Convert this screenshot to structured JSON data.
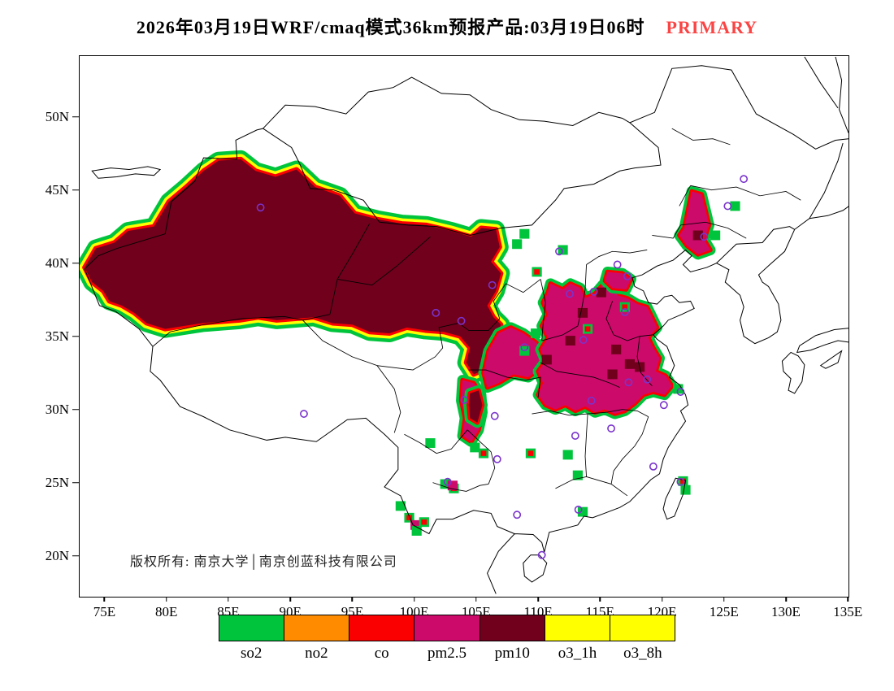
{
  "title": {
    "main": "2026年03月19日WRF/cmaq模式36km预报产品:03月19日06时",
    "tag": "PRIMARY",
    "tag_color": "#fb4444"
  },
  "map": {
    "copyright": "版权所有: 南京大学│南京创蓝科技有限公司",
    "bounds": {
      "lon_min": 73.0,
      "lon_max": 135.05,
      "lat_min": 17.2,
      "lat_max": 54.15
    },
    "lon_ticks": [
      {
        "value": 75,
        "label": "75E"
      },
      {
        "value": 80,
        "label": "80E"
      },
      {
        "value": 85,
        "label": "85E"
      },
      {
        "value": 90,
        "label": "90E"
      },
      {
        "value": 95,
        "label": "95E"
      },
      {
        "value": 100,
        "label": "100E"
      },
      {
        "value": 105,
        "label": "105E"
      },
      {
        "value": 110,
        "label": "110E"
      },
      {
        "value": 115,
        "label": "115E"
      },
      {
        "value": 120,
        "label": "120E"
      },
      {
        "value": 125,
        "label": "125E"
      },
      {
        "value": 130,
        "label": "130E"
      },
      {
        "value": 135,
        "label": "135E"
      }
    ],
    "lat_ticks": [
      {
        "value": 50,
        "label": "50N"
      },
      {
        "value": 45,
        "label": "45N"
      },
      {
        "value": 40,
        "label": "40N"
      },
      {
        "value": 35,
        "label": "35N"
      },
      {
        "value": 30,
        "label": "30N"
      },
      {
        "value": 25,
        "label": "25N"
      },
      {
        "value": 20,
        "label": "20N"
      }
    ]
  },
  "legend": {
    "segments": [
      {
        "key": "so2",
        "label": "so2",
        "color": "#00c53c"
      },
      {
        "key": "no2",
        "label": "no2",
        "color": "#ff8c00"
      },
      {
        "key": "co",
        "label": "co",
        "color": "#fb0000"
      },
      {
        "key": "pm25",
        "label": "pm2.5",
        "color": "#cc0a6a"
      },
      {
        "key": "pm10",
        "label": "pm10",
        "color": "#70001c"
      },
      {
        "key": "o3_1h",
        "label": "o3_1h",
        "color": "#ffff00"
      },
      {
        "key": "o3_8h",
        "label": "o3_8h",
        "color": "#ffff00"
      }
    ]
  },
  "colors": {
    "marker": "#7a33cc",
    "fringe_green": "#00c53c",
    "fringe_yellow": "#ffff00",
    "fringe_red": "#fb0000"
  },
  "chart_data": {
    "type": "pollution-map",
    "regions": [
      {
        "pollutant": "pm10",
        "fringe": "wide",
        "points": [
          [
            73.4,
            39.7
          ],
          [
            74.3,
            41.0
          ],
          [
            75.8,
            41.4
          ],
          [
            76.9,
            42.2
          ],
          [
            79.0,
            42.5
          ],
          [
            80.2,
            44.2
          ],
          [
            81.6,
            45.2
          ],
          [
            83.0,
            46.3
          ],
          [
            84.2,
            47.0
          ],
          [
            86.0,
            47.1
          ],
          [
            87.2,
            46.3
          ],
          [
            88.8,
            45.9
          ],
          [
            90.5,
            46.4
          ],
          [
            92.0,
            45.2
          ],
          [
            94.0,
            44.6
          ],
          [
            95.2,
            43.4
          ],
          [
            97.0,
            43.0
          ],
          [
            99.0,
            42.7
          ],
          [
            101.0,
            42.6
          ],
          [
            103.0,
            42.2
          ],
          [
            104.6,
            41.8
          ],
          [
            105.4,
            42.4
          ],
          [
            106.6,
            42.3
          ],
          [
            106.9,
            41.1
          ],
          [
            106.2,
            40.1
          ],
          [
            107.0,
            39.3
          ],
          [
            106.6,
            38.1
          ],
          [
            105.9,
            37.1
          ],
          [
            106.4,
            36.3
          ],
          [
            107.0,
            35.8
          ],
          [
            106.5,
            34.7
          ],
          [
            106.1,
            33.7
          ],
          [
            105.6,
            32.7
          ],
          [
            104.8,
            32.4
          ],
          [
            104.2,
            33.2
          ],
          [
            104.5,
            34.2
          ],
          [
            103.7,
            35.0
          ],
          [
            102.4,
            35.3
          ],
          [
            100.9,
            35.4
          ],
          [
            99.4,
            35.6
          ],
          [
            98.0,
            35.2
          ],
          [
            96.4,
            35.3
          ],
          [
            95.0,
            35.8
          ],
          [
            93.4,
            35.9
          ],
          [
            91.9,
            36.3
          ],
          [
            90.4,
            36.2
          ],
          [
            88.9,
            36.1
          ],
          [
            87.4,
            36.3
          ],
          [
            85.9,
            36.1
          ],
          [
            84.4,
            36.0
          ],
          [
            82.9,
            35.9
          ],
          [
            81.4,
            35.7
          ],
          [
            79.9,
            35.5
          ],
          [
            78.4,
            35.9
          ],
          [
            77.4,
            36.6
          ],
          [
            76.4,
            37.1
          ],
          [
            75.4,
            37.4
          ],
          [
            74.9,
            38.1
          ],
          [
            74.0,
            38.7
          ]
        ]
      },
      {
        "pollutant": "pm25",
        "points": [
          [
            105.6,
            32.5
          ],
          [
            106.0,
            34.0
          ],
          [
            106.8,
            35.2
          ],
          [
            107.8,
            35.6
          ],
          [
            108.8,
            35.2
          ],
          [
            109.8,
            34.6
          ],
          [
            110.5,
            34.0
          ],
          [
            110.2,
            32.8
          ],
          [
            109.2,
            32.2
          ],
          [
            108.0,
            32.4
          ],
          [
            106.8,
            31.8
          ],
          [
            105.9,
            31.5
          ]
        ]
      },
      {
        "pollutant": "pm25",
        "points": [
          [
            103.9,
            32.0
          ],
          [
            104.8,
            31.8
          ],
          [
            105.4,
            31.0
          ],
          [
            105.5,
            29.8
          ],
          [
            105.2,
            28.6
          ],
          [
            104.6,
            27.8
          ],
          [
            103.9,
            28.2
          ],
          [
            104.1,
            29.4
          ],
          [
            103.8,
            30.6
          ]
        ]
      },
      {
        "pollutant": "pm10",
        "points": [
          [
            104.5,
            31.1
          ],
          [
            105.2,
            31.3
          ],
          [
            105.5,
            30.3
          ],
          [
            105.1,
            29.1
          ],
          [
            104.5,
            29.4
          ],
          [
            104.4,
            30.3
          ]
        ]
      },
      {
        "pollutant": "pm25",
        "points": [
          [
            110.8,
            38.0
          ],
          [
            111.0,
            38.6
          ],
          [
            112.0,
            38.2
          ],
          [
            112.6,
            38.6
          ],
          [
            113.4,
            38.3
          ],
          [
            113.8,
            37.6
          ],
          [
            114.6,
            37.9
          ],
          [
            115.2,
            38.5
          ],
          [
            116.0,
            38.4
          ],
          [
            116.4,
            37.8
          ],
          [
            117.2,
            37.6
          ],
          [
            118.0,
            37.2
          ],
          [
            118.8,
            37.0
          ],
          [
            119.2,
            36.3
          ],
          [
            119.6,
            35.6
          ],
          [
            118.9,
            34.9
          ],
          [
            119.3,
            34.2
          ],
          [
            119.8,
            33.5
          ],
          [
            119.5,
            32.6
          ],
          [
            120.3,
            32.3
          ],
          [
            120.8,
            31.6
          ],
          [
            120.2,
            31.0
          ],
          [
            119.3,
            31.2
          ],
          [
            118.5,
            31.0
          ],
          [
            117.8,
            30.4
          ],
          [
            117.0,
            29.9
          ],
          [
            116.2,
            29.7
          ],
          [
            115.4,
            30.0
          ],
          [
            114.6,
            29.8
          ],
          [
            113.8,
            30.2
          ],
          [
            113.0,
            29.9
          ],
          [
            112.2,
            30.3
          ],
          [
            111.4,
            30.0
          ],
          [
            110.6,
            30.3
          ],
          [
            110.0,
            31.0
          ],
          [
            110.4,
            31.8
          ],
          [
            110.0,
            32.6
          ],
          [
            110.6,
            33.3
          ],
          [
            110.2,
            34.1
          ],
          [
            110.8,
            34.9
          ],
          [
            110.3,
            35.7
          ],
          [
            110.8,
            36.5
          ],
          [
            110.4,
            37.3
          ]
        ]
      },
      {
        "pollutant": "pm25",
        "points": [
          [
            115.6,
            39.4
          ],
          [
            116.8,
            39.3
          ],
          [
            117.5,
            38.9
          ],
          [
            117.1,
            38.2
          ],
          [
            116.0,
            38.3
          ],
          [
            115.4,
            38.8
          ]
        ]
      },
      {
        "pollutant": "pm25",
        "points": [
          [
            121.8,
            42.4
          ],
          [
            122.4,
            44.9
          ],
          [
            123.2,
            44.7
          ],
          [
            123.8,
            42.6
          ],
          [
            123.4,
            41.6
          ],
          [
            123.9,
            40.9
          ],
          [
            122.9,
            40.6
          ],
          [
            122.0,
            41.2
          ],
          [
            121.4,
            41.9
          ]
        ]
      }
    ],
    "cells": [
      [
        "so2",
        108.9,
        42.0
      ],
      [
        "so2",
        112.0,
        40.9
      ],
      [
        "so2",
        108.3,
        41.3
      ],
      [
        "co",
        109.9,
        39.4
      ],
      [
        "so2",
        109.8,
        35.2
      ],
      [
        "so2",
        108.9,
        34.0
      ],
      [
        "so2",
        112.4,
        26.9
      ],
      [
        "co",
        109.4,
        27.0
      ],
      [
        "so2",
        113.2,
        25.5
      ],
      [
        "so2",
        113.6,
        23.0
      ],
      [
        "so2",
        121.3,
        31.4
      ],
      [
        "co",
        121.7,
        25.1
      ],
      [
        "so2",
        121.9,
        24.5
      ],
      [
        "so2",
        98.9,
        23.4
      ],
      [
        "co",
        99.6,
        22.6
      ],
      [
        "pm25",
        100.1,
        22.1
      ],
      [
        "co",
        100.8,
        22.3
      ],
      [
        "so2",
        100.2,
        21.7
      ],
      [
        "co",
        105.6,
        27.0
      ],
      [
        "so2",
        104.9,
        27.4
      ],
      [
        "co",
        103.2,
        24.6
      ],
      [
        "so2",
        102.5,
        24.9
      ],
      [
        "pm25",
        103.1,
        24.8
      ],
      [
        "so2",
        101.3,
        27.7
      ],
      [
        "so2",
        124.3,
        41.9
      ],
      [
        "so2",
        125.9,
        43.9
      ],
      [
        "pm10",
        112.6,
        34.7
      ],
      [
        "pm10",
        113.6,
        36.6
      ],
      [
        "pm10",
        116.3,
        34.1
      ],
      [
        "pm10",
        117.4,
        33.1
      ],
      [
        "pm10",
        110.7,
        33.4
      ],
      [
        "pm10",
        116.0,
        32.4
      ],
      [
        "pm10",
        118.2,
        32.9
      ],
      [
        "pm10",
        122.9,
        41.9
      ],
      [
        "pm10",
        115.1,
        38.0
      ],
      [
        "co",
        117.0,
        37.0
      ],
      [
        "co",
        114.0,
        35.5
      ]
    ],
    "markers": [
      [
        87.6,
        43.8
      ],
      [
        91.1,
        29.7
      ],
      [
        101.75,
        36.6
      ],
      [
        103.8,
        36.05
      ],
      [
        106.3,
        38.5
      ],
      [
        111.7,
        40.8
      ],
      [
        112.55,
        37.9
      ],
      [
        114.5,
        38.05
      ],
      [
        116.4,
        39.9
      ],
      [
        117.2,
        39.1
      ],
      [
        117.0,
        36.65
      ],
      [
        113.65,
        34.75
      ],
      [
        108.9,
        34.25
      ],
      [
        104.05,
        30.65
      ],
      [
        106.5,
        29.55
      ],
      [
        106.7,
        26.6
      ],
      [
        102.7,
        25.05
      ],
      [
        108.3,
        22.8
      ],
      [
        113.25,
        23.15
      ],
      [
        110.3,
        20.05
      ],
      [
        114.3,
        30.6
      ],
      [
        113.0,
        28.2
      ],
      [
        115.9,
        28.7
      ],
      [
        117.3,
        31.85
      ],
      [
        118.8,
        32.05
      ],
      [
        121.5,
        31.2
      ],
      [
        120.15,
        30.3
      ],
      [
        119.3,
        26.1
      ],
      [
        121.5,
        25.05
      ],
      [
        123.4,
        41.8
      ],
      [
        125.3,
        43.9
      ],
      [
        126.6,
        45.75
      ]
    ]
  }
}
